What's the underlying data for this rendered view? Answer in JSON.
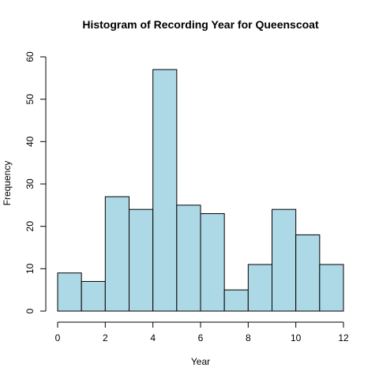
{
  "chart_data": {
    "type": "bar",
    "title": "Histogram of Recording Year for Queenscoat",
    "xlabel": "Year",
    "ylabel": "Frequency",
    "bins": [
      {
        "x0": 0,
        "x1": 1,
        "value": 9
      },
      {
        "x0": 1,
        "x1": 2,
        "value": 7
      },
      {
        "x0": 2,
        "x1": 3,
        "value": 27
      },
      {
        "x0": 3,
        "x1": 4,
        "value": 24
      },
      {
        "x0": 4,
        "x1": 5,
        "value": 57
      },
      {
        "x0": 5,
        "x1": 6,
        "value": 25
      },
      {
        "x0": 6,
        "x1": 7,
        "value": 23
      },
      {
        "x0": 7,
        "x1": 8,
        "value": 5
      },
      {
        "x0": 8,
        "x1": 9,
        "value": 11
      },
      {
        "x0": 9,
        "x1": 10,
        "value": 24
      },
      {
        "x0": 10,
        "x1": 11,
        "value": 18
      },
      {
        "x0": 11,
        "x1": 12,
        "value": 11
      }
    ],
    "xlim": [
      0,
      12
    ],
    "ylim": [
      0,
      60
    ],
    "xticks": [
      "0",
      "2",
      "4",
      "6",
      "8",
      "10",
      "12"
    ],
    "yticks": [
      "0",
      "10",
      "20",
      "30",
      "40",
      "50",
      "60"
    ],
    "grid": false,
    "colors": {
      "bar_fill": "#ADD8E6",
      "bar_stroke": "#000000"
    }
  }
}
